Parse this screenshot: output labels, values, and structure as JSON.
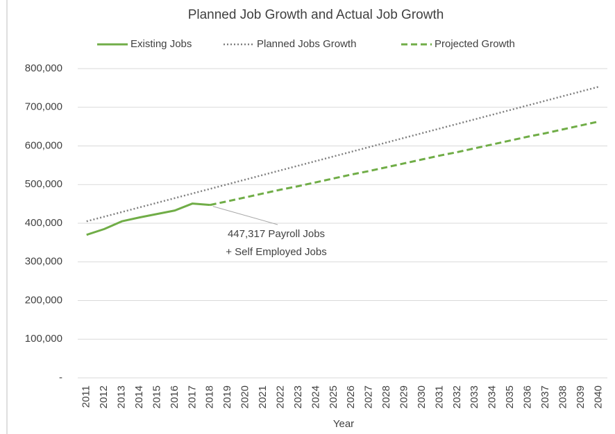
{
  "chart_data": {
    "type": "line",
    "title": "Planned Job Growth and Actual Job Growth",
    "x_label": "Year",
    "categories": [
      "2011",
      "2012",
      "2013",
      "2014",
      "2015",
      "2016",
      "2017",
      "2018",
      "2019",
      "2020",
      "2021",
      "2022",
      "2023",
      "2024",
      "2025",
      "2026",
      "2027",
      "2028",
      "2029",
      "2030",
      "2031",
      "2032",
      "2033",
      "2034",
      "2035",
      "2036",
      "2037",
      "2038",
      "2039",
      "2040"
    ],
    "series": [
      {
        "name": "Existing Jobs",
        "color": "#70ad47",
        "style": "solid",
        "values": [
          370000,
          385000,
          405000,
          415000,
          424000,
          433000,
          451000,
          447317,
          null,
          null,
          null,
          null,
          null,
          null,
          null,
          null,
          null,
          null,
          null,
          null,
          null,
          null,
          null,
          null,
          null,
          null,
          null,
          null,
          null,
          null
        ]
      },
      {
        "name": "Planned Jobs Growth",
        "color": "#7f7f7f",
        "style": "dotted",
        "values": [
          405000,
          417000,
          429000,
          441000,
          453000,
          465000,
          477000,
          489000,
          501000,
          513000,
          525000,
          537000,
          549000,
          561000,
          573000,
          585000,
          597000,
          609000,
          621000,
          633000,
          645000,
          657000,
          669000,
          681000,
          693000,
          705000,
          717000,
          729000,
          741000,
          753000
        ]
      },
      {
        "name": "Projected Growth",
        "color": "#70ad47",
        "style": "dashed",
        "values": [
          null,
          null,
          null,
          null,
          null,
          null,
          null,
          447317,
          457000,
          467000,
          477000,
          487000,
          496000,
          506000,
          516000,
          526000,
          535000,
          545000,
          555000,
          565000,
          575000,
          584000,
          594000,
          604000,
          614000,
          624000,
          633000,
          643000,
          653000,
          663000
        ]
      }
    ],
    "annotation": [
      "447,317 Payroll Jobs",
      "+ Self Employed Jobs"
    ],
    "ylim": [
      0,
      800000
    ],
    "yticks": [
      {
        "value": 0,
        "label": "-"
      },
      {
        "value": 100000,
        "label": "100,000"
      },
      {
        "value": 200000,
        "label": "200,000"
      },
      {
        "value": 300000,
        "label": "300,000"
      },
      {
        "value": 400000,
        "label": "400,000"
      },
      {
        "value": 500000,
        "label": "500,000"
      },
      {
        "value": 600000,
        "label": "600,000"
      },
      {
        "value": 700000,
        "label": "700,000"
      },
      {
        "value": 800000,
        "label": "800,000"
      }
    ],
    "grid": true,
    "legend": "top"
  }
}
